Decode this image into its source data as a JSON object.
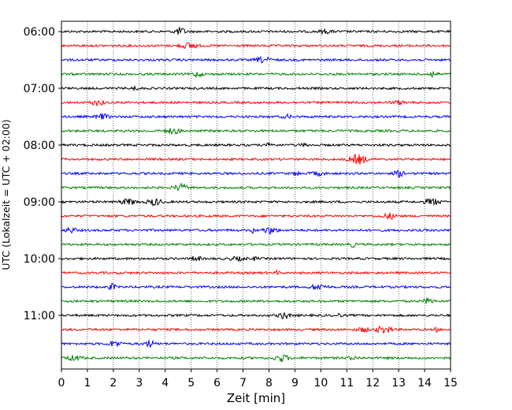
{
  "chart_data": {
    "type": "line",
    "title": "",
    "xlabel": "Zeit  [min]",
    "ylabel": "UTC (Lokalzeit = UTC + 02:00)",
    "xlim": [
      0,
      15
    ],
    "x_ticks": [
      "0",
      "1",
      "2",
      "3",
      "4",
      "5",
      "6",
      "7",
      "8",
      "9",
      "10",
      "11",
      "12",
      "13",
      "14",
      "15"
    ],
    "y_tick_labels": [
      "06:00",
      "07:00",
      "08:00",
      "09:00",
      "10:00",
      "11:00"
    ],
    "grid": "vertical dotted at each minute",
    "trace_interval_minutes": 15,
    "trace_count": 24,
    "first_trace_start": "06:00",
    "trace_color_cycle": [
      "#000000",
      "#ff0000",
      "#0000ff",
      "#008000"
    ]
  }
}
